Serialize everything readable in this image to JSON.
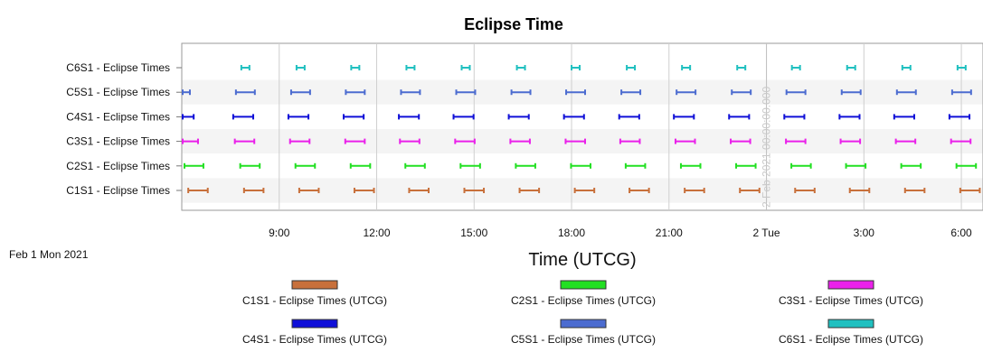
{
  "chart_data": {
    "type": "gantt",
    "title": "Eclipse Time",
    "xlabel": "Time (UTCG)",
    "date_label": "Feb 1 Mon 2021",
    "x_range": [
      "2021-02-01T06:00:00",
      "2021-02-02T06:40:00"
    ],
    "x_ticks": [
      {
        "t": "2021-02-01T09:00:00",
        "label": "9:00"
      },
      {
        "t": "2021-02-01T12:00:00",
        "label": "12:00"
      },
      {
        "t": "2021-02-01T15:00:00",
        "label": "15:00"
      },
      {
        "t": "2021-02-01T18:00:00",
        "label": "18:00"
      },
      {
        "t": "2021-02-01T21:00:00",
        "label": "21:00"
      },
      {
        "t": "2021-02-02T00:00:00",
        "label": "2 Tue"
      },
      {
        "t": "2021-02-02T03:00:00",
        "label": "3:00"
      },
      {
        "t": "2021-02-02T06:00:00",
        "label": "6:00"
      }
    ],
    "grid": true,
    "annotation": {
      "t": "2021-02-02T00:00:00",
      "text": "2 Feb 2021 00:00:00.000"
    },
    "legend_position": "bottom",
    "legend": [
      {
        "name": "C1S1 - Eclipse Times (UTCG)",
        "color": "#c8703b"
      },
      {
        "name": "C2S1 - Eclipse Times (UTCG)",
        "color": "#22e022"
      },
      {
        "name": "C3S1 - Eclipse Times (UTCG)",
        "color": "#ea20ea"
      },
      {
        "name": "C4S1 - Eclipse Times (UTCG)",
        "color": "#1010d8"
      },
      {
        "name": "C5S1 - Eclipse Times (UTCG)",
        "color": "#4c6cd0"
      },
      {
        "name": "C6S1 - Eclipse Times (UTCG)",
        "color": "#20c0c0"
      }
    ],
    "series": [
      {
        "name": "C6S1 - Eclipse Times",
        "color": "#20c0c0",
        "intervals": [
          [
            "2021-02-01T07:50:00",
            "2021-02-01T08:05:00"
          ],
          [
            "2021-02-01T09:32:00",
            "2021-02-01T09:47:00"
          ],
          [
            "2021-02-01T11:13:00",
            "2021-02-01T11:28:00"
          ],
          [
            "2021-02-01T12:55:00",
            "2021-02-01T13:10:00"
          ],
          [
            "2021-02-01T14:37:00",
            "2021-02-01T14:52:00"
          ],
          [
            "2021-02-01T16:19:00",
            "2021-02-01T16:34:00"
          ],
          [
            "2021-02-01T18:00:00",
            "2021-02-01T18:15:00"
          ],
          [
            "2021-02-01T19:42:00",
            "2021-02-01T19:57:00"
          ],
          [
            "2021-02-01T21:24:00",
            "2021-02-01T21:39:00"
          ],
          [
            "2021-02-01T23:06:00",
            "2021-02-01T23:21:00"
          ],
          [
            "2021-02-02T00:47:00",
            "2021-02-02T01:02:00"
          ],
          [
            "2021-02-02T02:29:00",
            "2021-02-02T02:44:00"
          ],
          [
            "2021-02-02T04:11:00",
            "2021-02-02T04:26:00"
          ],
          [
            "2021-02-02T05:53:00",
            "2021-02-02T06:08:00"
          ]
        ]
      },
      {
        "name": "C5S1 - Eclipse Times",
        "color": "#4c6cd0",
        "intervals": [
          [
            "2021-02-01T06:00:00",
            "2021-02-01T06:15:00"
          ],
          [
            "2021-02-01T07:40:00",
            "2021-02-01T08:15:00"
          ],
          [
            "2021-02-01T09:22:00",
            "2021-02-01T09:57:00"
          ],
          [
            "2021-02-01T11:03:00",
            "2021-02-01T11:38:00"
          ],
          [
            "2021-02-01T12:45:00",
            "2021-02-01T13:20:00"
          ],
          [
            "2021-02-01T14:27:00",
            "2021-02-01T15:02:00"
          ],
          [
            "2021-02-01T16:09:00",
            "2021-02-01T16:44:00"
          ],
          [
            "2021-02-01T17:50:00",
            "2021-02-01T18:25:00"
          ],
          [
            "2021-02-01T19:32:00",
            "2021-02-01T20:07:00"
          ],
          [
            "2021-02-01T21:14:00",
            "2021-02-01T21:49:00"
          ],
          [
            "2021-02-01T22:56:00",
            "2021-02-01T23:31:00"
          ],
          [
            "2021-02-02T00:37:00",
            "2021-02-02T01:12:00"
          ],
          [
            "2021-02-02T02:19:00",
            "2021-02-02T02:54:00"
          ],
          [
            "2021-02-02T04:01:00",
            "2021-02-02T04:36:00"
          ],
          [
            "2021-02-02T05:43:00",
            "2021-02-02T06:18:00"
          ]
        ]
      },
      {
        "name": "C4S1 - Eclipse Times",
        "color": "#1010d8",
        "intervals": [
          [
            "2021-02-01T06:00:00",
            "2021-02-01T06:22:00"
          ],
          [
            "2021-02-01T07:35:00",
            "2021-02-01T08:12:00"
          ],
          [
            "2021-02-01T09:17:00",
            "2021-02-01T09:54:00"
          ],
          [
            "2021-02-01T10:59:00",
            "2021-02-01T11:36:00"
          ],
          [
            "2021-02-01T12:41:00",
            "2021-02-01T13:18:00"
          ],
          [
            "2021-02-01T14:22:00",
            "2021-02-01T14:59:00"
          ],
          [
            "2021-02-01T16:04:00",
            "2021-02-01T16:41:00"
          ],
          [
            "2021-02-01T17:46:00",
            "2021-02-01T18:23:00"
          ],
          [
            "2021-02-01T19:28:00",
            "2021-02-01T20:05:00"
          ],
          [
            "2021-02-01T21:09:00",
            "2021-02-01T21:46:00"
          ],
          [
            "2021-02-01T22:51:00",
            "2021-02-01T23:28:00"
          ],
          [
            "2021-02-02T00:33:00",
            "2021-02-02T01:10:00"
          ],
          [
            "2021-02-02T02:15:00",
            "2021-02-02T02:52:00"
          ],
          [
            "2021-02-02T03:56:00",
            "2021-02-02T04:33:00"
          ],
          [
            "2021-02-02T05:38:00",
            "2021-02-02T06:15:00"
          ]
        ]
      },
      {
        "name": "C3S1 - Eclipse Times",
        "color": "#ea20ea",
        "intervals": [
          [
            "2021-02-01T06:00:00",
            "2021-02-01T06:30:00"
          ],
          [
            "2021-02-01T07:38:00",
            "2021-02-01T08:14:00"
          ],
          [
            "2021-02-01T09:20:00",
            "2021-02-01T09:56:00"
          ],
          [
            "2021-02-01T11:02:00",
            "2021-02-01T11:38:00"
          ],
          [
            "2021-02-01T12:43:00",
            "2021-02-01T13:19:00"
          ],
          [
            "2021-02-01T14:25:00",
            "2021-02-01T15:01:00"
          ],
          [
            "2021-02-01T16:07:00",
            "2021-02-01T16:43:00"
          ],
          [
            "2021-02-01T17:49:00",
            "2021-02-01T18:25:00"
          ],
          [
            "2021-02-01T19:30:00",
            "2021-02-01T20:06:00"
          ],
          [
            "2021-02-01T21:12:00",
            "2021-02-01T21:48:00"
          ],
          [
            "2021-02-01T22:54:00",
            "2021-02-01T23:30:00"
          ],
          [
            "2021-02-02T00:36:00",
            "2021-02-02T01:12:00"
          ],
          [
            "2021-02-02T02:17:00",
            "2021-02-02T02:53:00"
          ],
          [
            "2021-02-02T03:59:00",
            "2021-02-02T04:35:00"
          ],
          [
            "2021-02-02T05:41:00",
            "2021-02-02T06:17:00"
          ]
        ]
      },
      {
        "name": "C2S1 - Eclipse Times",
        "color": "#22e022",
        "intervals": [
          [
            "2021-02-01T06:05:00",
            "2021-02-01T06:40:00"
          ],
          [
            "2021-02-01T07:48:00",
            "2021-02-01T08:24:00"
          ],
          [
            "2021-02-01T09:30:00",
            "2021-02-01T10:06:00"
          ],
          [
            "2021-02-01T11:12:00",
            "2021-02-01T11:48:00"
          ],
          [
            "2021-02-01T12:53:00",
            "2021-02-01T13:29:00"
          ],
          [
            "2021-02-01T14:35:00",
            "2021-02-01T15:11:00"
          ],
          [
            "2021-02-01T16:17:00",
            "2021-02-01T16:53:00"
          ],
          [
            "2021-02-01T17:59:00",
            "2021-02-01T18:35:00"
          ],
          [
            "2021-02-01T19:40:00",
            "2021-02-01T20:16:00"
          ],
          [
            "2021-02-01T21:22:00",
            "2021-02-01T21:58:00"
          ],
          [
            "2021-02-01T23:04:00",
            "2021-02-01T23:40:00"
          ],
          [
            "2021-02-02T00:46:00",
            "2021-02-02T01:22:00"
          ],
          [
            "2021-02-02T02:27:00",
            "2021-02-02T03:03:00"
          ],
          [
            "2021-02-02T04:09:00",
            "2021-02-02T04:45:00"
          ],
          [
            "2021-02-02T05:51:00",
            "2021-02-02T06:27:00"
          ]
        ]
      },
      {
        "name": "C1S1 - Eclipse Times",
        "color": "#c8703b",
        "intervals": [
          [
            "2021-02-01T06:12:00",
            "2021-02-01T06:48:00"
          ],
          [
            "2021-02-01T07:55:00",
            "2021-02-01T08:31:00"
          ],
          [
            "2021-02-01T09:37:00",
            "2021-02-01T10:13:00"
          ],
          [
            "2021-02-01T11:19:00",
            "2021-02-01T11:55:00"
          ],
          [
            "2021-02-01T13:00:00",
            "2021-02-01T13:36:00"
          ],
          [
            "2021-02-01T14:42:00",
            "2021-02-01T15:18:00"
          ],
          [
            "2021-02-01T16:24:00",
            "2021-02-01T17:00:00"
          ],
          [
            "2021-02-01T18:06:00",
            "2021-02-01T18:42:00"
          ],
          [
            "2021-02-01T19:47:00",
            "2021-02-01T20:23:00"
          ],
          [
            "2021-02-01T21:29:00",
            "2021-02-01T22:05:00"
          ],
          [
            "2021-02-01T23:11:00",
            "2021-02-01T23:47:00"
          ],
          [
            "2021-02-02T00:53:00",
            "2021-02-02T01:29:00"
          ],
          [
            "2021-02-02T02:34:00",
            "2021-02-02T03:10:00"
          ],
          [
            "2021-02-02T04:16:00",
            "2021-02-02T04:52:00"
          ],
          [
            "2021-02-02T05:58:00",
            "2021-02-02T06:34:00"
          ]
        ]
      }
    ]
  }
}
